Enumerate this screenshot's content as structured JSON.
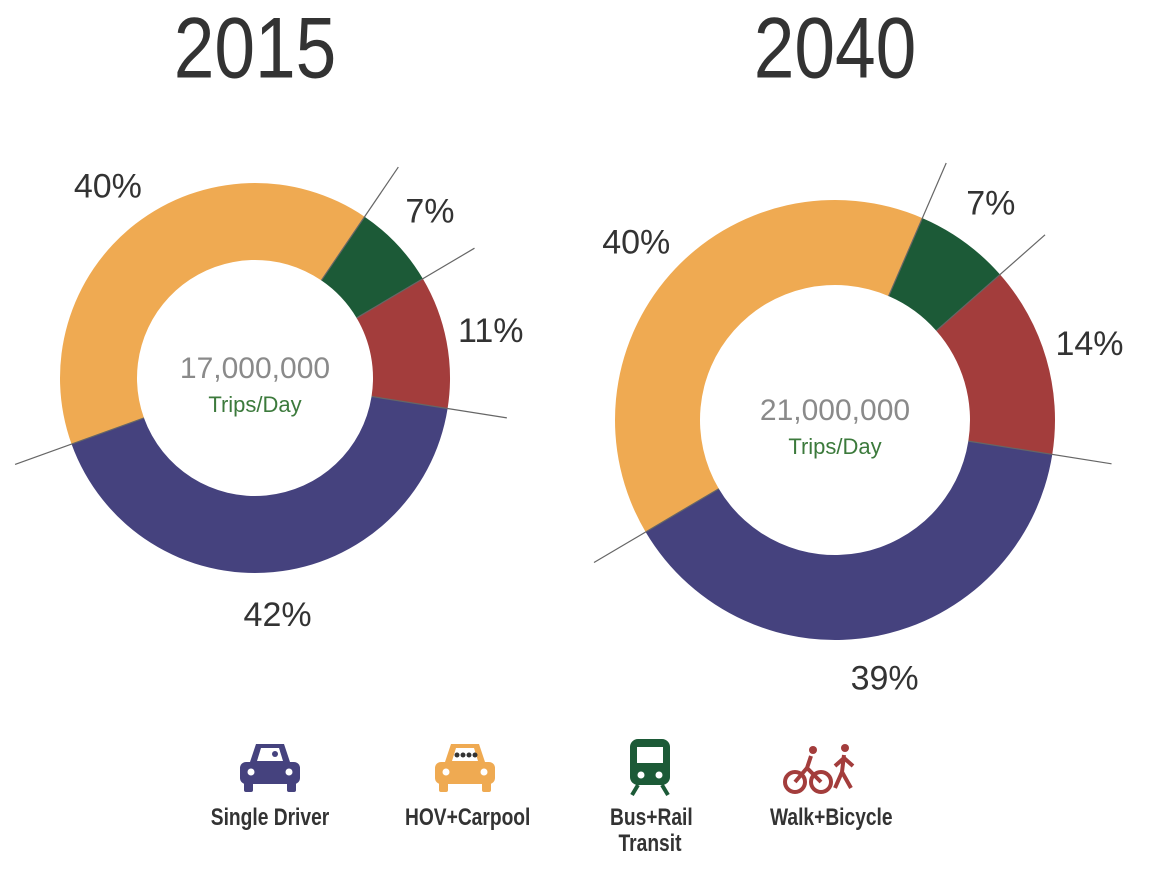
{
  "chart_data": [
    {
      "type": "pie",
      "title": "2015",
      "categories": [
        "Single Driver",
        "HOV+Carpool",
        "Bus+Rail Transit",
        "Walk+Bicycle"
      ],
      "values": [
        42,
        40,
        7,
        11
      ],
      "value_labels": [
        "42%",
        "40%",
        "7%",
        "11%"
      ],
      "colors": [
        "#45427e",
        "#efaa52",
        "#1c5a37",
        "#a33d3c"
      ],
      "center_label": "17,000,000",
      "center_sublabel": "Trips/Day"
    },
    {
      "type": "pie",
      "title": "2040",
      "categories": [
        "Single Driver",
        "HOV+Carpool",
        "Bus+Rail Transit",
        "Walk+Bicycle"
      ],
      "values": [
        39,
        40,
        7,
        14
      ],
      "value_labels": [
        "39%",
        "40%",
        "7%",
        "14%"
      ],
      "colors": [
        "#45427e",
        "#efaa52",
        "#1c5a37",
        "#a33d3c"
      ],
      "center_label": "21,000,000",
      "center_sublabel": "Trips/Day"
    }
  ]
}
